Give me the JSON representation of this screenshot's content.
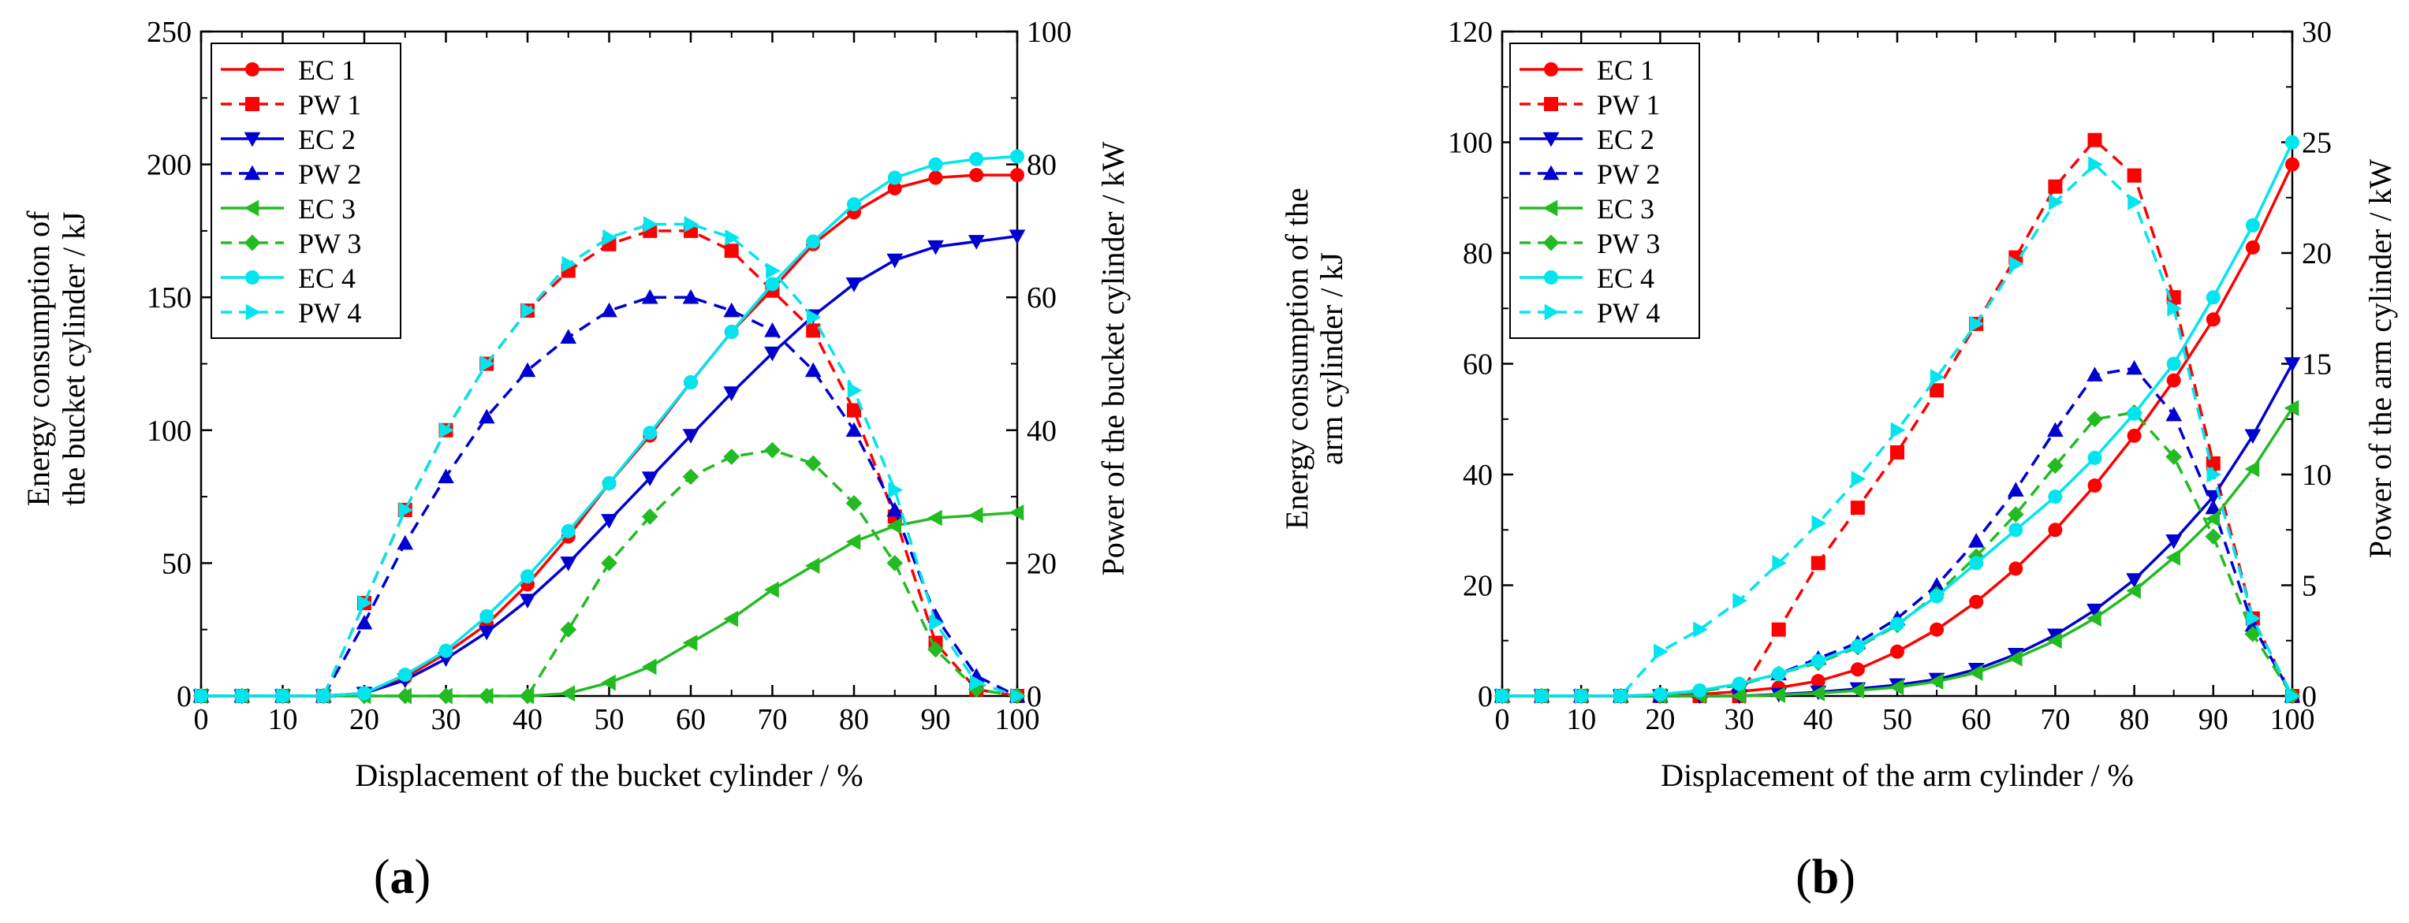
{
  "figure": {
    "panels": [
      {
        "label_open": "(",
        "label_letter": "a",
        "label_close": ")"
      },
      {
        "label_open": "(",
        "label_letter": "b",
        "label_close": ")"
      }
    ]
  },
  "chart_data": [
    {
      "type": "line",
      "title": "",
      "xlabel": "Displacement of the bucket cylinder / %",
      "ylabel_left": [
        "Energy consumption of",
        "the bucket cylinder / kJ"
      ],
      "ylabel_right": "Power of the bucket cylinder / kW",
      "xlim": [
        0,
        100
      ],
      "xticks": [
        0,
        10,
        20,
        30,
        40,
        50,
        60,
        70,
        80,
        90,
        100
      ],
      "ylim_left": [
        0,
        250
      ],
      "yticks_left": [
        0,
        50,
        100,
        150,
        200,
        250
      ],
      "ylim_right": [
        0,
        100
      ],
      "yticks_right": [
        0,
        20,
        40,
        60,
        80,
        100
      ],
      "grid": false,
      "legend_position": "top-left",
      "x": [
        0,
        5,
        10,
        15,
        20,
        25,
        30,
        35,
        40,
        45,
        50,
        55,
        60,
        65,
        70,
        75,
        80,
        85,
        90,
        95,
        100
      ],
      "series": [
        {
          "name": "EC 1",
          "axis": "left",
          "color": "#ff0000",
          "dash": false,
          "marker": "circle",
          "values": [
            0,
            0,
            0,
            0,
            1,
            7,
            16,
            27,
            42,
            60,
            80,
            98,
            118,
            137,
            153,
            170,
            182,
            191,
            195,
            196,
            196
          ]
        },
        {
          "name": "PW 1",
          "axis": "right",
          "color": "#ff0000",
          "dash": true,
          "marker": "square",
          "values": [
            0,
            0,
            0,
            0,
            14,
            28,
            40,
            50,
            58,
            64,
            68,
            70,
            70,
            67,
            61,
            55,
            43,
            27,
            8,
            1,
            0
          ]
        },
        {
          "name": "EC 2",
          "axis": "left",
          "color": "#0000d0",
          "dash": false,
          "marker": "triangle-down",
          "values": [
            0,
            0,
            0,
            0,
            1,
            6,
            14,
            24,
            36,
            50,
            66,
            82,
            98,
            114,
            129,
            143,
            155,
            164,
            169,
            171,
            173
          ]
        },
        {
          "name": "PW 2",
          "axis": "right",
          "color": "#0000d0",
          "dash": true,
          "marker": "triangle-up",
          "values": [
            0,
            0,
            0,
            0,
            11,
            23,
            33,
            42,
            49,
            54,
            58,
            60,
            60,
            58,
            55,
            49,
            40,
            28,
            12,
            3,
            0
          ]
        },
        {
          "name": "EC 3",
          "axis": "left",
          "color": "#22bb22",
          "dash": false,
          "marker": "triangle-left",
          "values": [
            0,
            0,
            0,
            0,
            0,
            0,
            0,
            0,
            0,
            1,
            5,
            11,
            20,
            29,
            40,
            49,
            58,
            64,
            67,
            68,
            69
          ]
        },
        {
          "name": "PW 3",
          "axis": "right",
          "color": "#22bb22",
          "dash": true,
          "marker": "diamond",
          "values": [
            0,
            0,
            0,
            0,
            0,
            0,
            0,
            0,
            0,
            10,
            20,
            27,
            33,
            36,
            37,
            35,
            29,
            20,
            7,
            1,
            0
          ]
        },
        {
          "name": "EC 4",
          "axis": "left",
          "color": "#00e5ee",
          "dash": false,
          "marker": "circle",
          "values": [
            0,
            0,
            0,
            0,
            1,
            8,
            17,
            30,
            45,
            62,
            80,
            99,
            118,
            137,
            155,
            171,
            185,
            195,
            200,
            202,
            203
          ]
        },
        {
          "name": "PW 4",
          "axis": "right",
          "color": "#00e5ee",
          "dash": true,
          "marker": "triangle-right",
          "values": [
            0,
            0,
            0,
            0,
            14,
            28,
            40,
            50,
            58,
            65,
            69,
            71,
            71,
            69,
            64,
            57,
            46,
            31,
            11,
            2,
            0
          ]
        }
      ]
    },
    {
      "type": "line",
      "title": "",
      "xlabel": "Displacement of the arm cylinder / %",
      "ylabel_left": [
        "Energy consumption of the",
        "arm cylinder / kJ"
      ],
      "ylabel_right": "Power of the arm cylinder / kW",
      "xlim": [
        0,
        100
      ],
      "xticks": [
        0,
        10,
        20,
        30,
        40,
        50,
        60,
        70,
        80,
        90,
        100
      ],
      "ylim_left": [
        0,
        120
      ],
      "yticks_left": [
        0,
        20,
        40,
        60,
        80,
        100,
        120
      ],
      "ylim_right": [
        0,
        30
      ],
      "yticks_right": [
        0,
        5,
        10,
        15,
        20,
        25,
        30
      ],
      "grid": false,
      "legend_position": "top-left",
      "x": [
        0,
        5,
        10,
        15,
        20,
        25,
        30,
        35,
        40,
        45,
        50,
        55,
        60,
        65,
        70,
        75,
        80,
        85,
        90,
        95,
        100
      ],
      "series": [
        {
          "name": "EC 1",
          "axis": "left",
          "color": "#ff0000",
          "dash": false,
          "marker": "circle",
          "values": [
            0,
            0,
            0,
            0,
            0,
            0.3,
            0.8,
            1.5,
            2.7,
            4.8,
            8,
            12,
            17,
            23,
            30,
            38,
            47,
            57,
            68,
            81,
            96
          ]
        },
        {
          "name": "PW 1",
          "axis": "right",
          "color": "#ff0000",
          "dash": true,
          "marker": "square",
          "values": [
            0,
            0,
            0,
            0,
            0,
            0,
            0,
            3,
            6,
            8.5,
            11,
            13.8,
            16.8,
            19.8,
            23,
            25.1,
            23.5,
            18,
            10.5,
            3.5,
            0
          ]
        },
        {
          "name": "EC 2",
          "axis": "left",
          "color": "#0000d0",
          "dash": false,
          "marker": "triangle-down",
          "values": [
            0,
            0,
            0,
            0,
            0,
            0,
            0,
            0.3,
            0.7,
            1.3,
            2,
            3,
            4.8,
            7.5,
            11,
            15.5,
            21,
            28,
            36,
            47,
            60
          ]
        },
        {
          "name": "PW 2",
          "axis": "right",
          "color": "#0000d0",
          "dash": true,
          "marker": "triangle-up",
          "values": [
            0,
            0,
            0,
            0,
            0,
            0.2,
            0.5,
            1,
            1.7,
            2.4,
            3.5,
            5,
            7,
            9.3,
            12,
            14.5,
            14.8,
            12.7,
            8.5,
            3.2,
            0
          ]
        },
        {
          "name": "EC 3",
          "axis": "left",
          "color": "#22bb22",
          "dash": false,
          "marker": "triangle-left",
          "values": [
            0,
            0,
            0,
            0,
            0,
            0,
            0,
            0.2,
            0.5,
            1,
            1.6,
            2.6,
            4.2,
            6.8,
            10,
            14,
            19,
            25,
            32,
            41,
            52
          ]
        },
        {
          "name": "PW 3",
          "axis": "right",
          "color": "#22bb22",
          "dash": true,
          "marker": "diamond",
          "values": [
            0,
            0,
            0,
            0,
            0,
            0.2,
            0.5,
            1,
            1.5,
            2.2,
            3.2,
            4.6,
            6.3,
            8.2,
            10.4,
            12.5,
            12.8,
            10.8,
            7.2,
            2.8,
            0
          ]
        },
        {
          "name": "EC 4",
          "axis": "left",
          "color": "#00e5ee",
          "dash": false,
          "marker": "circle",
          "values": [
            0,
            0,
            0,
            0,
            0.3,
            1,
            2.2,
            4,
            6.3,
            9,
            13,
            18,
            24,
            30,
            36,
            43,
            51,
            60,
            72,
            85,
            100
          ]
        },
        {
          "name": "PW 4",
          "axis": "right",
          "color": "#00e5ee",
          "dash": true,
          "marker": "triangle-right",
          "values": [
            0,
            0,
            0,
            0,
            2,
            3,
            4.3,
            6,
            7.8,
            9.8,
            12,
            14.4,
            16.8,
            19.5,
            22.3,
            24,
            22.3,
            17.5,
            10,
            3.5,
            0
          ]
        }
      ]
    }
  ]
}
